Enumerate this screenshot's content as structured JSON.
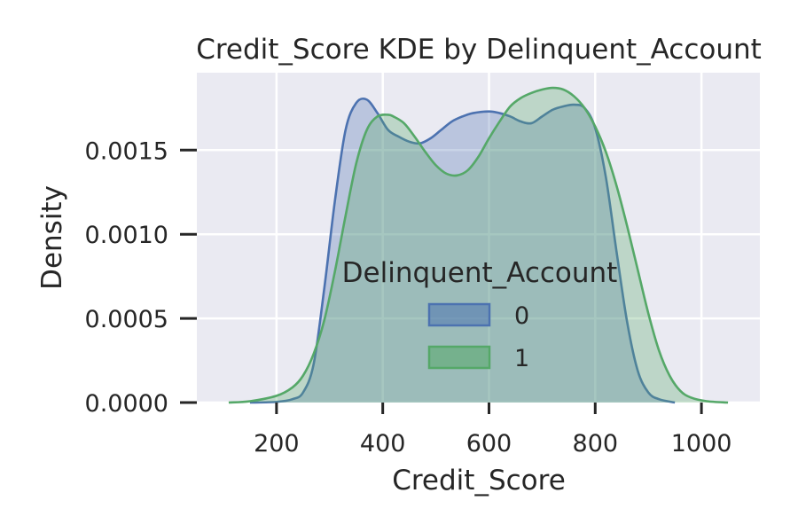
{
  "chart_data": {
    "type": "area",
    "title": "Credit_Score KDE by Delinquent_Account",
    "xlabel": "Credit_Score",
    "ylabel": "Density",
    "xlim": [
      50,
      1110
    ],
    "ylim": [
      0,
      0.00196
    ],
    "xticks": [
      200,
      400,
      600,
      800,
      1000
    ],
    "xtick_labels": [
      "200",
      "400",
      "600",
      "800",
      "1000"
    ],
    "yticks": [
      0.0,
      0.0005,
      0.001,
      0.0015
    ],
    "ytick_labels": [
      "0.0000",
      "0.0005",
      "0.0010",
      "0.0015"
    ],
    "grid": true,
    "background": "#eaeaf2",
    "legend": {
      "title": "Delinquent_Account",
      "placement": "lower-center"
    },
    "series": [
      {
        "name": "0",
        "color": "#4c72b0",
        "x": [
          150,
          200,
          230,
          250,
          270,
          290,
          310,
          330,
          350,
          370,
          390,
          410,
          430,
          450,
          470,
          490,
          510,
          530,
          550,
          570,
          600,
          620,
          640,
          660,
          680,
          700,
          720,
          740,
          760,
          780,
          800,
          820,
          840,
          860,
          880,
          900,
          920,
          950
        ],
        "y": [
          0.0,
          4e-06,
          2e-05,
          6e-05,
          0.00023,
          0.00068,
          0.0012,
          0.00162,
          0.00178,
          0.0018,
          0.00172,
          0.00162,
          0.00158,
          0.00155,
          0.00154,
          0.00157,
          0.00162,
          0.00167,
          0.0017,
          0.00172,
          0.00173,
          0.00172,
          0.0017,
          0.00167,
          0.00166,
          0.0017,
          0.00174,
          0.00176,
          0.00177,
          0.00175,
          0.00163,
          0.00134,
          0.0009,
          0.00048,
          0.00019,
          6e-05,
          2e-05,
          0.0
        ]
      },
      {
        "name": "1",
        "color": "#55a868",
        "x": [
          110,
          150,
          200,
          230,
          250,
          270,
          290,
          310,
          330,
          350,
          370,
          390,
          410,
          420,
          440,
          460,
          480,
          500,
          520,
          540,
          560,
          580,
          600,
          620,
          640,
          660,
          680,
          700,
          720,
          740,
          760,
          780,
          800,
          820,
          840,
          860,
          880,
          900,
          920,
          940,
          960,
          980,
          1010,
          1050
        ],
        "y": [
          0.0,
          8e-06,
          4e-05,
          9e-05,
          0.00016,
          0.00029,
          0.00049,
          0.00078,
          0.00111,
          0.00142,
          0.00162,
          0.0017,
          0.00171,
          0.0017,
          0.00166,
          0.00158,
          0.00149,
          0.00141,
          0.00136,
          0.00135,
          0.00138,
          0.00146,
          0.00157,
          0.00167,
          0.00176,
          0.00181,
          0.00184,
          0.00186,
          0.00187,
          0.00186,
          0.00182,
          0.00175,
          0.00164,
          0.00149,
          0.00129,
          0.00105,
          0.00079,
          0.00053,
          0.00031,
          0.00016,
          7e-05,
          3e-05,
          8e-06,
          0.0
        ]
      }
    ]
  }
}
